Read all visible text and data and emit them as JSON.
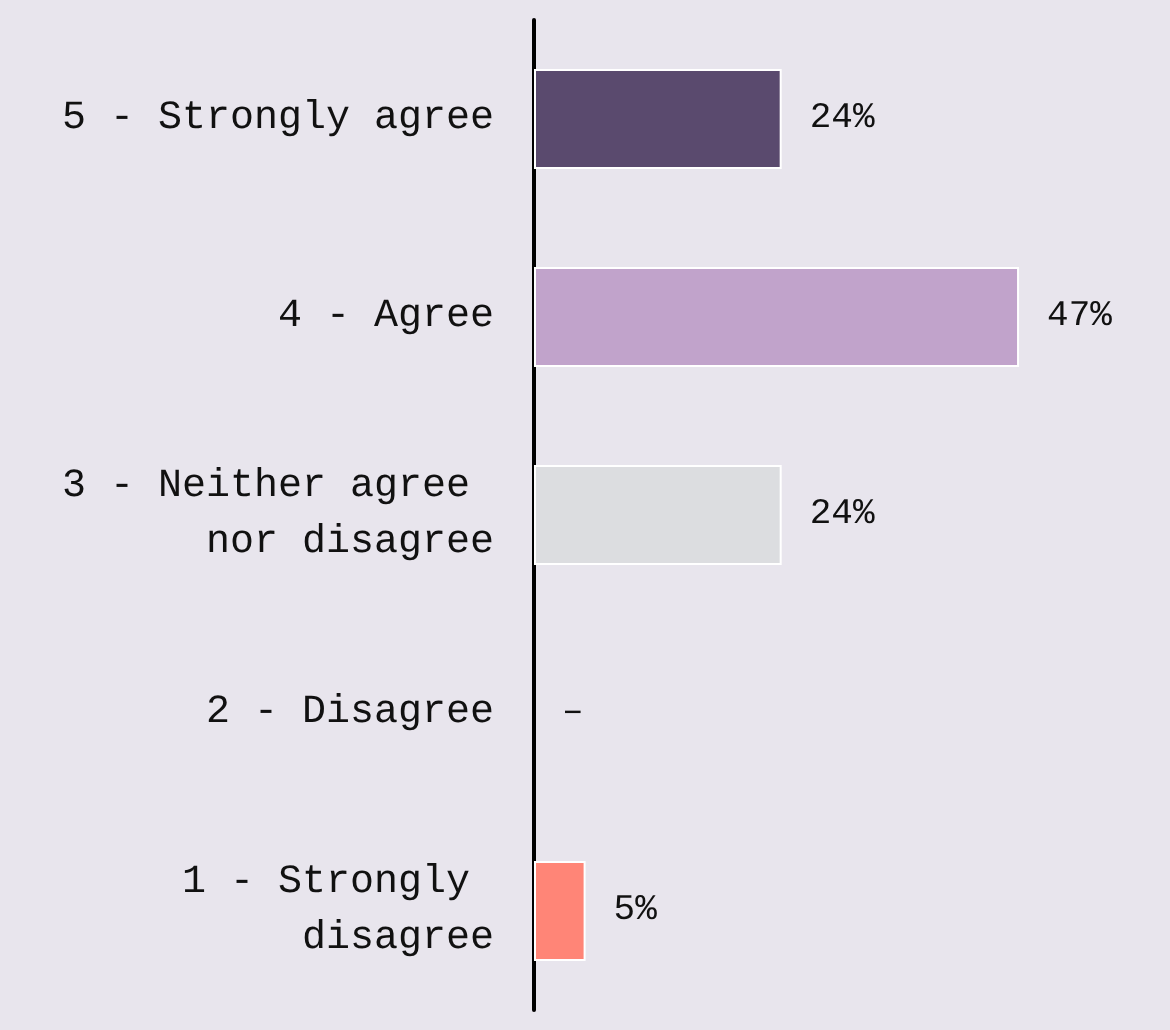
{
  "chart_data": {
    "type": "bar",
    "orientation": "horizontal",
    "tick_labels": "y",
    "categories": [
      "5 - Strongly agree",
      "4 - Agree",
      "3 - Neither agree nor disagree",
      "2 - Disagree",
      "1 - Strongly disagree"
    ],
    "values": [
      24,
      47,
      24,
      0,
      5
    ],
    "value_labels": [
      "24%",
      "47%",
      "24%",
      "–",
      "5%"
    ],
    "colors": [
      "#5a4a6e",
      "#c1a3cb",
      "#dcdde0",
      "#dcdde0",
      "#ff8577"
    ]
  }
}
